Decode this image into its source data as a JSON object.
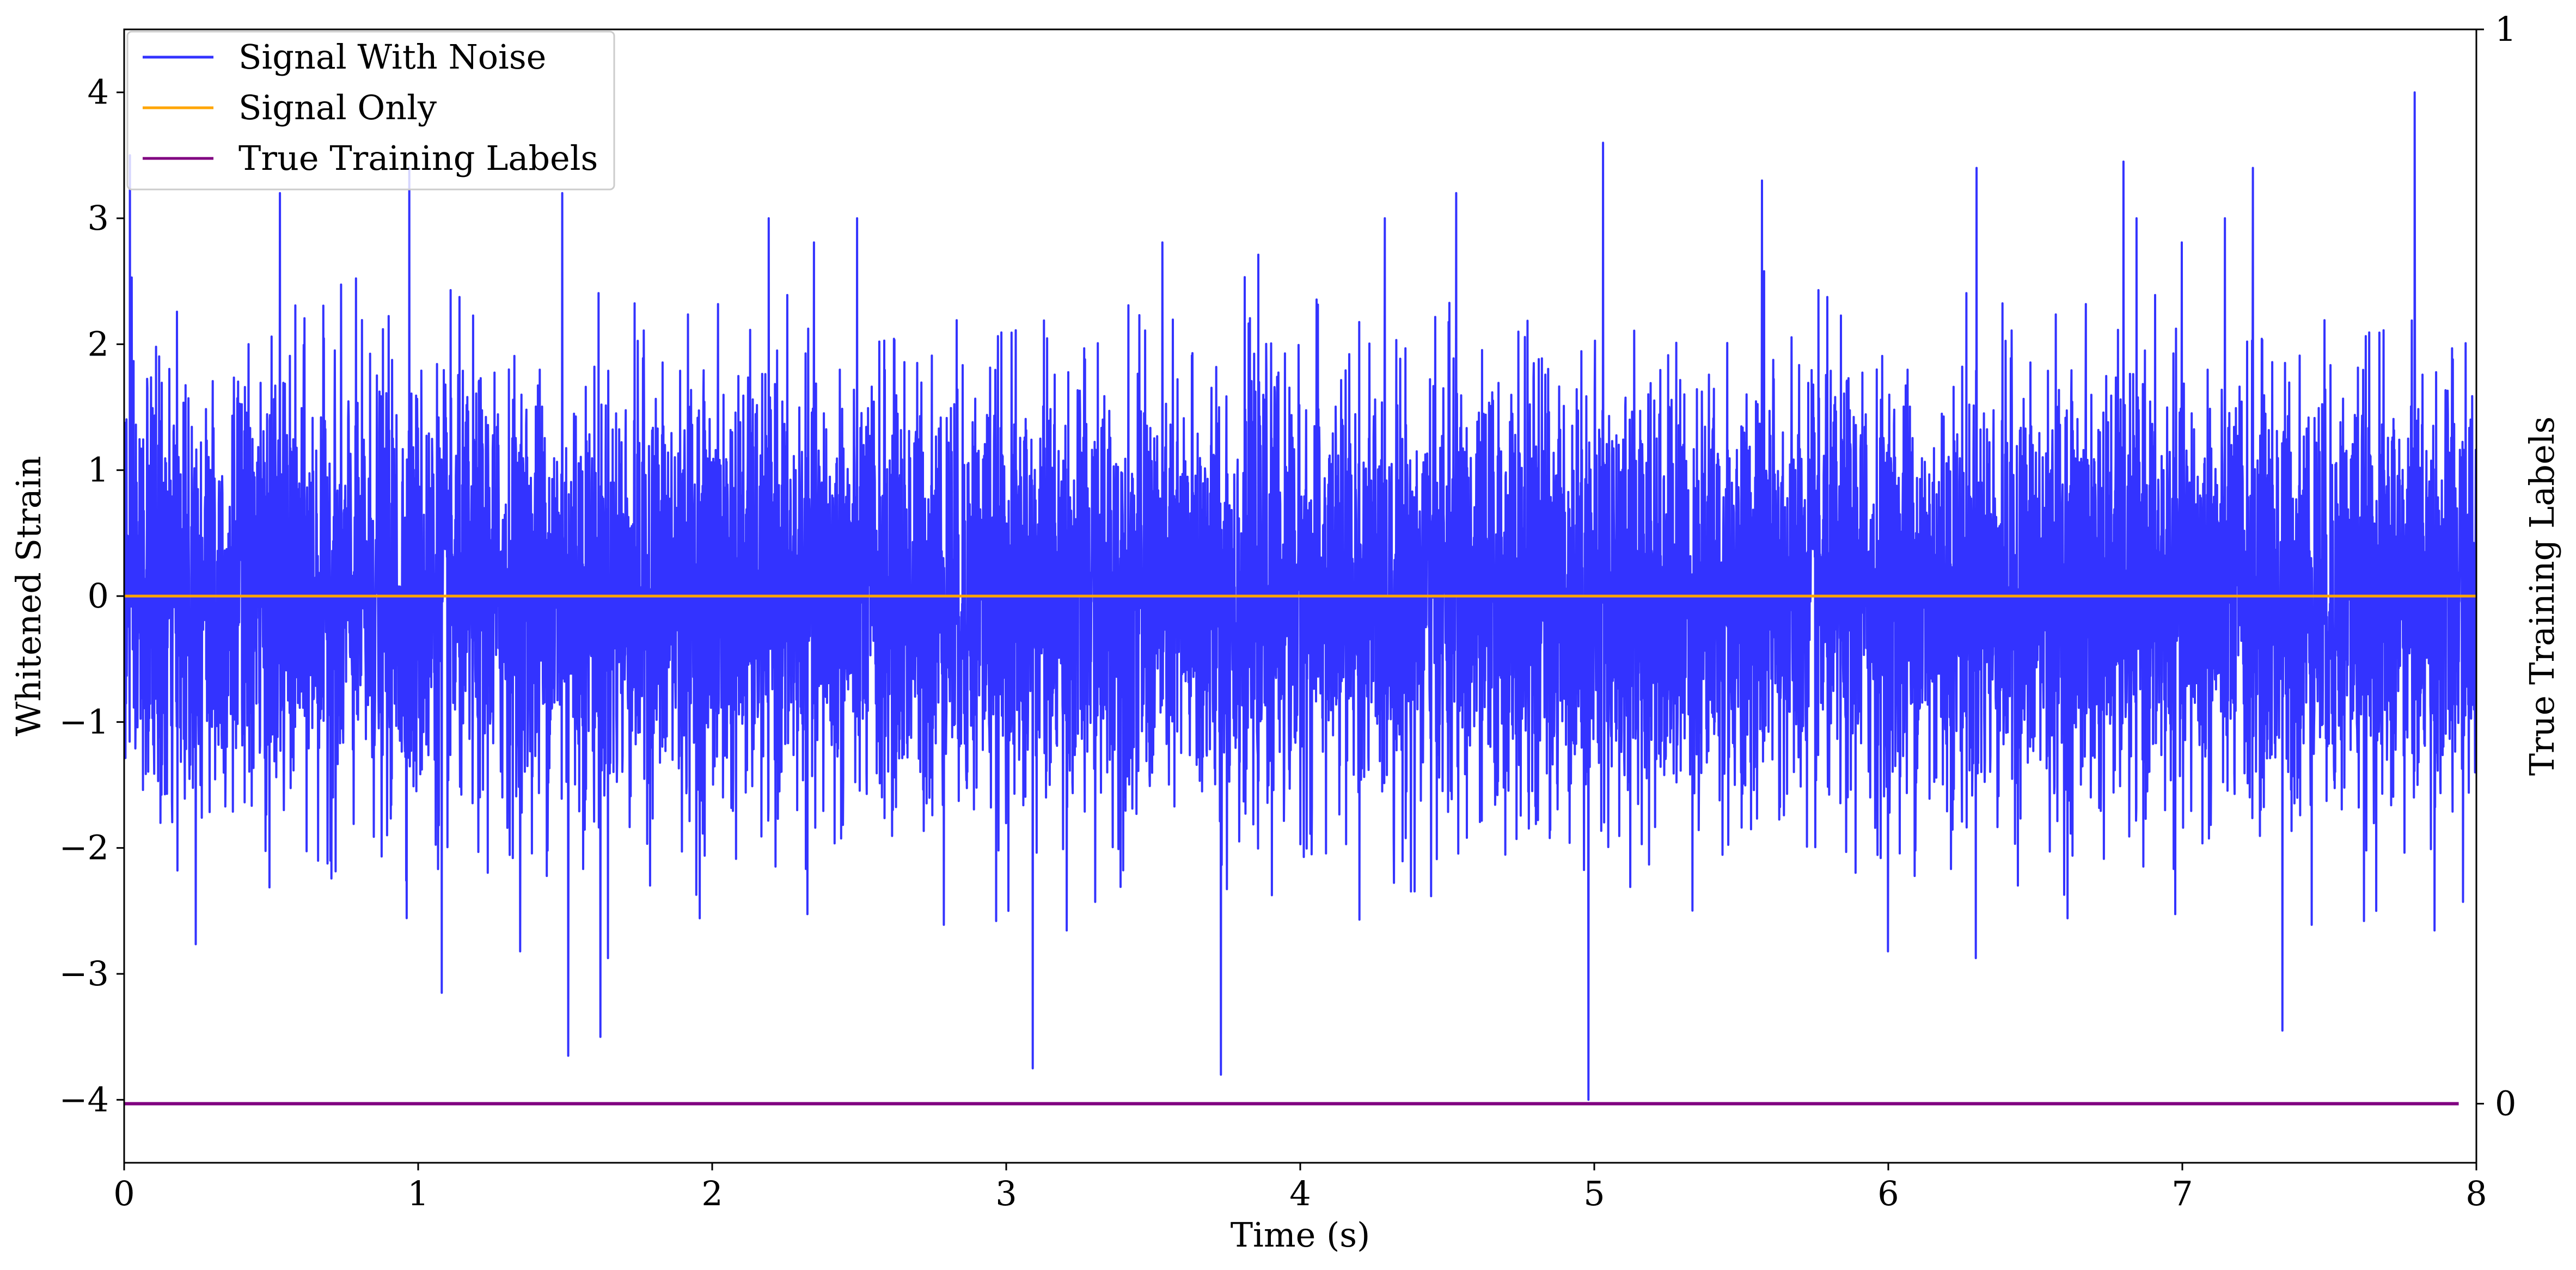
{
  "chart_data": {
    "type": "line",
    "title": "",
    "xlabel": "Time (s)",
    "ylabel": "Whitened Strain",
    "ylabel_right": "True Training Labels",
    "xlim": [
      0,
      8
    ],
    "ylim": [
      -4.5,
      4.5
    ],
    "ylim_right": [
      -0.055,
      1.0
    ],
    "x_ticks": [
      0,
      1,
      2,
      3,
      4,
      5,
      6,
      7,
      8
    ],
    "y_ticks": [
      -4,
      -3,
      -2,
      -1,
      0,
      1,
      2,
      3,
      4
    ],
    "y_ticks_right": [
      0,
      1
    ],
    "legend_position": "upper-left",
    "series": [
      {
        "name": "Signal With Noise",
        "color": "#3333ff",
        "axis": "left",
        "kind": "noise",
        "note_values": "approximately zero-mean noise, std about 0.9, sampled densely over 0-8 s",
        "x_range": [
          0,
          8
        ],
        "peak_points": [
          {
            "x": 0.02,
            "y": 3.5
          },
          {
            "x": 0.53,
            "y": 3.2
          },
          {
            "x": 0.97,
            "y": 3.4
          },
          {
            "x": 1.49,
            "y": 3.2
          },
          {
            "x": 1.51,
            "y": -3.65
          },
          {
            "x": 1.62,
            "y": -3.5
          },
          {
            "x": 1.08,
            "y": -3.15
          },
          {
            "x": 3.09,
            "y": -3.75
          },
          {
            "x": 3.73,
            "y": -3.8
          },
          {
            "x": 4.53,
            "y": 3.2
          },
          {
            "x": 4.98,
            "y": -4.0
          },
          {
            "x": 5.03,
            "y": 3.6
          },
          {
            "x": 5.57,
            "y": 3.3
          },
          {
            "x": 6.3,
            "y": 3.4
          },
          {
            "x": 6.8,
            "y": 3.45
          },
          {
            "x": 7.24,
            "y": 3.4
          },
          {
            "x": 7.34,
            "y": -3.45
          },
          {
            "x": 7.79,
            "y": 4.0
          }
        ]
      },
      {
        "name": "Signal Only",
        "color": "#ffa500",
        "axis": "left",
        "kind": "line",
        "x": [
          0,
          8
        ],
        "y": [
          0,
          0
        ]
      },
      {
        "name": "True Training Labels",
        "color": "#800080",
        "axis": "right",
        "kind": "line",
        "x": [
          0,
          7.94
        ],
        "y": [
          0,
          0
        ]
      }
    ]
  }
}
